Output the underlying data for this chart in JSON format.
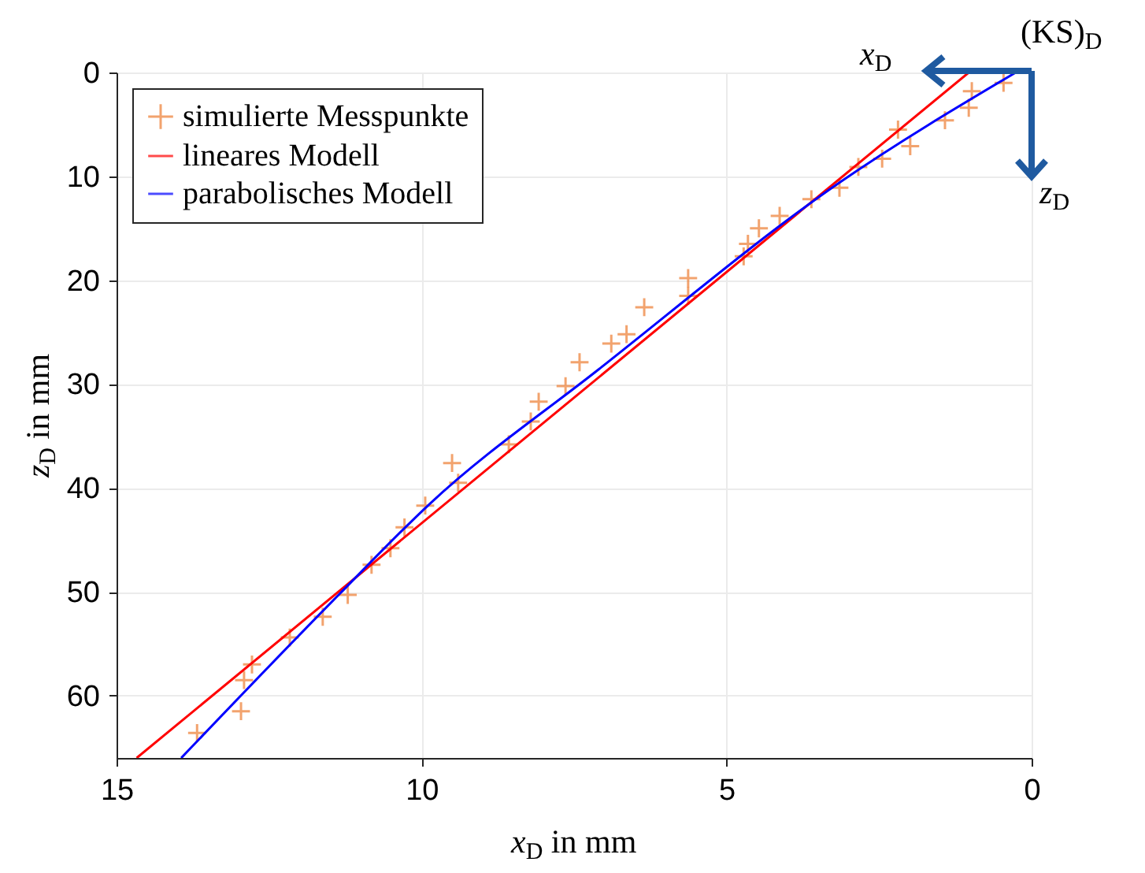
{
  "chart_data": {
    "type": "scatter",
    "xlabel": "x$_{D}$ in mm",
    "ylabel": "z$_{D}$ in mm",
    "annotations": [
      "(KS)$_{D}$",
      "x$_{D}$",
      "z$_{D}$"
    ],
    "xlim": [
      15,
      0
    ],
    "ylim": [
      66,
      0
    ],
    "xticks": [
      15,
      10,
      5,
      0
    ],
    "yticks": [
      0,
      10,
      20,
      30,
      40,
      50,
      60
    ],
    "grid": true,
    "legend": "top left",
    "series": [
      {
        "name": "simulierte Messpunkte",
        "marker": "cross",
        "color": "#ed7d31",
        "x": [
          0.46,
          0.98,
          1.03,
          1.42,
          2.19,
          1.99,
          2.45,
          2.84,
          3.15,
          3.61,
          4.13,
          4.47,
          4.65,
          4.72,
          5.63,
          5.63,
          6.35,
          6.64,
          6.89,
          7.41,
          7.64,
          8.08,
          8.21,
          8.57,
          9.5,
          9.4,
          9.94,
          10.28,
          10.51,
          10.82,
          11.21,
          11.62,
          12.16,
          12.78,
          12.91,
          12.96,
          13.68
        ],
        "values": [
          1.0,
          1.8,
          3.4,
          4.6,
          5.5,
          7.1,
          8.3,
          9.1,
          11.1,
          12.2,
          13.8,
          15.0,
          16.5,
          17.7,
          19.8,
          21.5,
          22.6,
          25.2,
          26.1,
          27.9,
          30.2,
          31.7,
          33.6,
          35.8,
          37.6,
          39.5,
          41.7,
          43.8,
          45.8,
          47.4,
          50.3,
          52.4,
          54.4,
          57.0,
          58.5,
          61.5,
          63.6
        ]
      },
      {
        "name": "lineares Modell",
        "type": "line",
        "color": "#ff0000",
        "x": [
          1.03,
          14.67
        ],
        "values": [
          0,
          66
        ]
      },
      {
        "name": "parabolisches Modell",
        "type": "line",
        "color": "#0000ff",
        "x": [
          0.26,
          3.15,
          7.1,
          9.86,
          11.36,
          13.94
        ],
        "values": [
          0,
          10.6,
          28.6,
          41.5,
          50.3,
          66
        ]
      }
    ]
  }
}
